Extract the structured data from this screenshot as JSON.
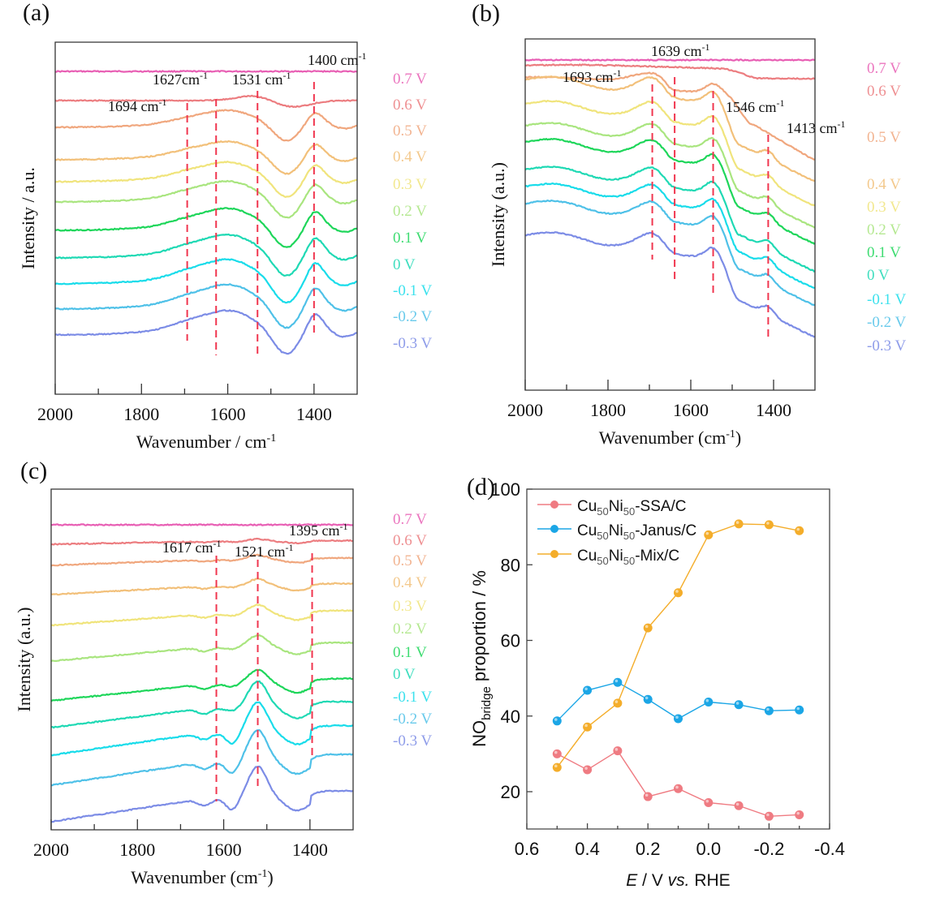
{
  "figure": {
    "panels": [
      "(a)",
      "(b)",
      "(c)",
      "(d)"
    ]
  },
  "chart_data": [
    {
      "id": "a",
      "panel_label": "(a)",
      "type": "line",
      "title": "",
      "xlabel": "Wavenumber / cm",
      "xlabel_sup": "-1",
      "xlabel_suffix": "",
      "ylabel": "Intensity / a.u.",
      "xlim": [
        2000,
        1300
      ],
      "xticks": [
        2000,
        1800,
        1600,
        1400
      ],
      "minor_xticks": [
        1900,
        1700,
        1500
      ],
      "yticks": [],
      "grid": false,
      "series_labels": [
        "0.7 V",
        "0.6 V",
        "0.5 V",
        "0.4 V",
        "0.3 V",
        "0.2 V",
        "0.1 V",
        "0 V",
        "-0.1 V",
        "-0.2 V",
        "-0.3 V"
      ],
      "series_colors": [
        "#e85fb4",
        "#ec7d80",
        "#f0a77e",
        "#f2c07a",
        "#f0e47c",
        "#a9e57f",
        "#1ed65a",
        "#1fd9b4",
        "#19dcea",
        "#4fc1e8",
        "#7c8ce6"
      ],
      "annotations": [
        {
          "text": "1694 cm",
          "sup": "-1",
          "x": 1694
        },
        {
          "text": "1627cm",
          "sup": "-1",
          "x": 1627
        },
        {
          "text": "1531 cm",
          "sup": "-1",
          "x": 1531
        },
        {
          "text": "1400 cm",
          "sup": "-1",
          "x": 1400
        }
      ]
    },
    {
      "id": "b",
      "panel_label": "(b)",
      "type": "line",
      "title": "",
      "xlabel": "Wavenumber (cm",
      "xlabel_sup": "-1",
      "xlabel_suffix": ")",
      "ylabel": "Intensity (a.u.)",
      "xlim": [
        2000,
        1300
      ],
      "xticks": [
        2000,
        1800,
        1600,
        1400
      ],
      "minor_xticks": [
        1900,
        1700,
        1500
      ],
      "yticks": [],
      "grid": false,
      "series_labels": [
        "0.7 V",
        "0.6 V",
        "0.5 V",
        "0.4 V",
        "0.3 V",
        "0.2 V",
        "0.1 V",
        "0 V",
        "-0.1 V",
        "-0.2 V",
        "-0.3 V"
      ],
      "series_colors": [
        "#e85fb4",
        "#ec7d80",
        "#f0a77e",
        "#f2c07a",
        "#f0e47c",
        "#a9e57f",
        "#1ed65a",
        "#1fd9b4",
        "#19dcea",
        "#4fc1e8",
        "#7c8ce6"
      ],
      "annotations": [
        {
          "text": "1693 cm",
          "sup": "-1",
          "x": 1693
        },
        {
          "text": "1639 cm",
          "sup": "-1",
          "x": 1639
        },
        {
          "text": "1546 cm",
          "sup": "-1",
          "x": 1546
        },
        {
          "text": "1413 cm",
          "sup": "-1",
          "x": 1413
        }
      ]
    },
    {
      "id": "c",
      "panel_label": "(c)",
      "type": "line",
      "title": "",
      "xlabel": "Wavenumber (cm",
      "xlabel_sup": "-1",
      "xlabel_suffix": ")",
      "ylabel": "Intensity (a.u.)",
      "xlim": [
        2000,
        1300
      ],
      "xticks": [
        2000,
        1800,
        1600,
        1400
      ],
      "minor_xticks": [
        1900,
        1700,
        1500
      ],
      "yticks": [],
      "grid": false,
      "series_labels": [
        "0.7 V",
        "0.6 V",
        "0.5 V",
        "0.4 V",
        "0.3 V",
        "0.2 V",
        "0.1 V",
        "0 V",
        "-0.1 V",
        "-0.2 V",
        "-0.3 V"
      ],
      "series_colors": [
        "#e85fb4",
        "#ec7d80",
        "#f0a77e",
        "#f2c07a",
        "#f0e47c",
        "#a9e57f",
        "#1ed65a",
        "#1fd9b4",
        "#19dcea",
        "#4fc1e8",
        "#7c8ce6"
      ],
      "annotations": [
        {
          "text": "1617 cm",
          "sup": "-1",
          "x": 1617
        },
        {
          "text": "1521 cm",
          "sup": "-1",
          "x": 1521
        },
        {
          "text": "1395 cm",
          "sup": "-1",
          "x": 1395
        }
      ]
    },
    {
      "id": "d",
      "panel_label": "(d)",
      "type": "line",
      "title": "",
      "xlabel": "E / V vs. RHE",
      "xlabel_parts": {
        "italic_e": "E",
        "mid": " / V ",
        "italic_vs": "vs.",
        "end": " RHE"
      },
      "ylabel": "NO",
      "ylabel_sub": "bridge",
      "ylabel_end": " proportion / %",
      "xlim": [
        0.6,
        -0.4
      ],
      "ylim": [
        10,
        100
      ],
      "xticks": [
        0.6,
        0.4,
        0.2,
        0.0,
        -0.2,
        -0.4
      ],
      "xtick_labels": [
        "0.6",
        "0.4",
        "0.2",
        "0.0",
        "-0.2",
        "-0.4"
      ],
      "minor_xticks": [
        0.5,
        0.3,
        0.1,
        -0.1,
        -0.3
      ],
      "yticks": [
        20,
        40,
        60,
        80,
        100
      ],
      "ytick_labels": [
        "20",
        "40",
        "60",
        "80",
        "100"
      ],
      "grid": false,
      "legend_position": "top-left",
      "x": [
        0.5,
        0.4,
        0.3,
        0.2,
        0.1,
        0.0,
        -0.1,
        -0.2,
        -0.3
      ],
      "series": [
        {
          "name": "Cu50Ni50-SSA/C",
          "label_parts": [
            "Cu",
            "50",
            "Ni",
            "50",
            "-SSA/C"
          ],
          "color": "#ef7b82",
          "values": [
            30.0,
            25.8,
            30.8,
            18.7,
            20.8,
            17.1,
            16.3,
            13.5,
            13.9
          ]
        },
        {
          "name": "Cu50Ni50-Janus/C",
          "label_parts": [
            "Cu",
            "50",
            "Ni",
            "50",
            "-Janus/C"
          ],
          "color": "#1ba6e6",
          "values": [
            38.7,
            46.8,
            48.9,
            44.4,
            39.3,
            43.7,
            43.0,
            41.4,
            41.6
          ]
        },
        {
          "name": "Cu50Ni50-Mix/C",
          "label_parts": [
            "Cu",
            "50",
            "Ni",
            "50",
            "-Mix/C"
          ],
          "color": "#f4ad2a",
          "values": [
            26.4,
            37.1,
            43.4,
            63.3,
            72.6,
            87.9,
            90.8,
            90.6,
            89.0
          ]
        }
      ]
    }
  ]
}
